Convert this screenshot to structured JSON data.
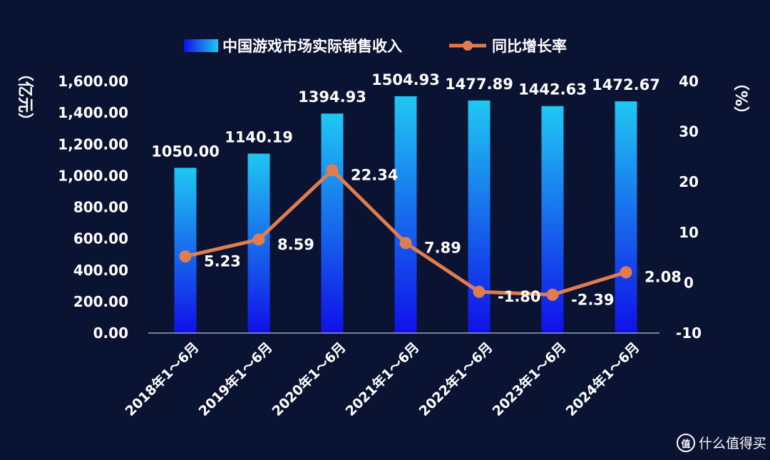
{
  "chart_data": {
    "type": "bar+line",
    "categories": [
      "2018年1～6月",
      "2019年1～6月",
      "2020年1～6月",
      "2021年1～6月",
      "2022年1～6月",
      "2023年1～6月",
      "2024年1～6月"
    ],
    "series": [
      {
        "name": "中国游戏市场实际销售收入",
        "type": "bar",
        "axis": "left",
        "values": [
          1050.0,
          1140.19,
          1394.93,
          1504.93,
          1477.89,
          1442.63,
          1472.67
        ],
        "labels": [
          "1050.00",
          "1140.19",
          "1394.93",
          "1504.93",
          "1477.89",
          "1442.63",
          "1472.67"
        ]
      },
      {
        "name": "同比增长率",
        "type": "line",
        "axis": "right",
        "values": [
          5.23,
          8.59,
          22.34,
          7.89,
          -1.8,
          -2.39,
          2.08
        ],
        "labels": [
          "5.23",
          "8.59",
          "22.34",
          "7.89",
          "-1.80",
          "-2.39",
          "2.08"
        ]
      }
    ],
    "y_left": {
      "label": "（亿元）",
      "ylim": [
        0,
        1600
      ],
      "ticks": [
        0,
        200,
        400,
        600,
        800,
        1000,
        1200,
        1400,
        1600
      ],
      "tick_labels": [
        "0.00",
        "200.00",
        "400.00",
        "600.00",
        "800.00",
        "1,000.00",
        "1,200.00",
        "1,400.00",
        "1,600.00"
      ]
    },
    "y_right": {
      "label": "（%）",
      "ylim": [
        -10,
        40
      ],
      "ticks": [
        -10,
        0,
        10,
        20,
        30,
        40
      ],
      "tick_labels": [
        "-10",
        "0",
        "10",
        "20",
        "30",
        "40"
      ]
    },
    "legend_position": "top",
    "grid": false,
    "colors": {
      "bar_top": "#1fc8f2",
      "bar_bottom": "#1010e8",
      "line": "#e07d4f",
      "background": "#0b1333"
    }
  },
  "watermark": {
    "text": "什么值得买",
    "icon": "zhi-logo-icon"
  }
}
